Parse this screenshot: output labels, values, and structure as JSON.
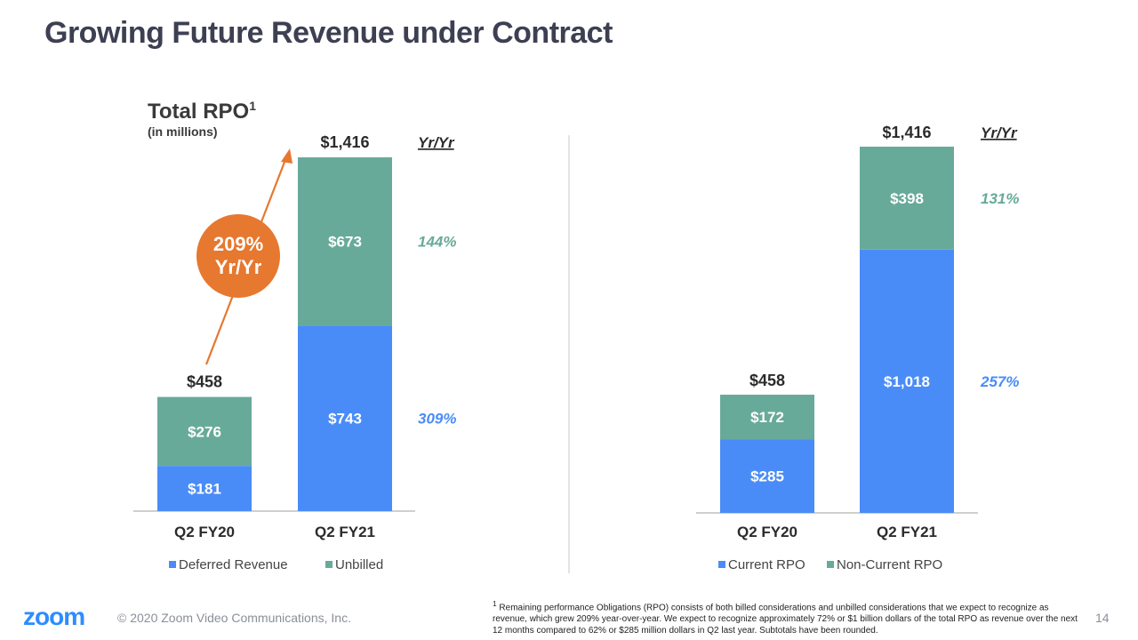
{
  "slide": {
    "title": "Growing Future Revenue under Contract",
    "logo": "zoom",
    "copyright": "© 2020 Zoom Video Communications, Inc.",
    "page_number": "14",
    "footnote_marker": "1",
    "footnote": "Remaining performance Obligations (RPO) consists of both billed considerations and unbilled considerations that we expect to recognize as revenue, which grew 209% year-over-year. We expect to recognize approximately 72% or $1 billion dollars of the total RPO as revenue over the next 12 months compared to 62% or $285 million dollars in Q2 last year. Subtotals have been rounded."
  },
  "colors": {
    "title": "#3d3f52",
    "blue": "#4a8cf7",
    "green": "#68aa99",
    "orange": "#e6782f",
    "axis": "#cfcfcf",
    "text": "#2b2b2b"
  },
  "chart_data": [
    {
      "type": "bar",
      "stacked": true,
      "title": "Total RPO",
      "title_superscript": "1",
      "subtitle": "(in millions)",
      "categories": [
        "Q2 FY20",
        "Q2 FY21"
      ],
      "series": [
        {
          "name": "Deferred Revenue",
          "color": "#4a8cf7",
          "values": [
            181,
            743
          ],
          "labels": [
            "$181",
            "$743"
          ]
        },
        {
          "name": "Unbilled",
          "color": "#68aa99",
          "values": [
            276,
            673
          ],
          "labels": [
            "$276",
            "$673"
          ]
        }
      ],
      "totals": [
        458,
        1416
      ],
      "total_labels": [
        "$458",
        "$1,416"
      ],
      "yoy_header": "Yr/Yr",
      "yoy": [
        {
          "series": "Unbilled",
          "label": "144%",
          "color": "#68aa99"
        },
        {
          "series": "Deferred Revenue",
          "label": "309%",
          "color": "#4a8cf7"
        }
      ],
      "callout": {
        "line1": "209%",
        "line2": "Yr/Yr",
        "color": "#e6782f"
      },
      "legend": [
        "Deferred Revenue",
        "Unbilled"
      ],
      "ylim": [
        0,
        1416
      ]
    },
    {
      "type": "bar",
      "stacked": true,
      "title": "",
      "categories": [
        "Q2 FY20",
        "Q2 FY21"
      ],
      "series": [
        {
          "name": "Current RPO",
          "color": "#4a8cf7",
          "values": [
            285,
            1018
          ],
          "labels": [
            "$285",
            "$1,018"
          ]
        },
        {
          "name": "Non-Current RPO",
          "color": "#68aa99",
          "values": [
            172,
            398
          ],
          "labels": [
            "$172",
            "$398"
          ]
        }
      ],
      "totals": [
        458,
        1416
      ],
      "total_labels": [
        "$458",
        "$1,416"
      ],
      "yoy_header": "Yr/Yr",
      "yoy": [
        {
          "series": "Non-Current RPO",
          "label": "131%",
          "color": "#68aa99"
        },
        {
          "series": "Current RPO",
          "label": "257%",
          "color": "#4a8cf7"
        }
      ],
      "legend": [
        "Current RPO",
        "Non-Current RPO"
      ],
      "ylim": [
        0,
        1416
      ]
    }
  ]
}
